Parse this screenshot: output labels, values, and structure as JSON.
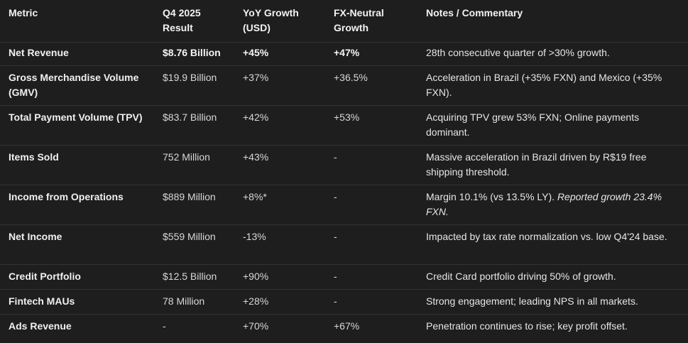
{
  "headers": {
    "metric": "Metric",
    "q4": "Q4 2025 Result",
    "yoy": "YoY Growth (USD)",
    "fxn": "FX-Neutral Growth",
    "notes": "Notes / Commentary"
  },
  "rows": [
    {
      "metric": "Net Revenue",
      "q4": "$8.76 Billion",
      "yoy": "+45%",
      "fxn": "+47%",
      "notes": "28th consecutive quarter of >30% growth.",
      "notes_italic": ""
    },
    {
      "metric": "Gross Merchandise Volume (GMV)",
      "q4": "$19.9 Billion",
      "yoy": "+37%",
      "fxn": "+36.5%",
      "notes": "Acceleration in Brazil (+35% FXN) and Mexico (+35% FXN).",
      "notes_italic": ""
    },
    {
      "metric": "Total Payment Volume (TPV)",
      "q4": "$83.7 Billion",
      "yoy": "+42%",
      "fxn": "+53%",
      "notes": "Acquiring TPV grew 53% FXN; Online payments dominant.",
      "notes_italic": ""
    },
    {
      "metric": "Items Sold",
      "q4": "752 Million",
      "yoy": "+43%",
      "fxn": "-",
      "notes": "Massive acceleration in Brazil driven by R$19 free shipping threshold.",
      "notes_italic": ""
    },
    {
      "metric": "Income from Operations",
      "q4": "$889 Million",
      "yoy": "+8%*",
      "fxn": "-",
      "notes": "Margin 10.1% (vs 13.5% LY). ",
      "notes_italic": "Reported growth 23.4% FXN."
    },
    {
      "metric": "Net Income",
      "q4": "$559 Million",
      "yoy": "-13%",
      "fxn": "-",
      "notes": "Impacted by tax rate normalization vs. low Q4'24 base.",
      "notes_italic": ""
    },
    {
      "metric": "Credit Portfolio",
      "q4": "$12.5 Billion",
      "yoy": "+90%",
      "fxn": "-",
      "notes": "Credit Card portfolio driving 50% of growth.",
      "notes_italic": ""
    },
    {
      "metric": "Fintech MAUs",
      "q4": "78 Million",
      "yoy": "+28%",
      "fxn": "-",
      "notes": "Strong engagement; leading NPS in all markets.",
      "notes_italic": ""
    },
    {
      "metric": "Ads Revenue",
      "q4": "-",
      "yoy": "+70%",
      "fxn": "+67%",
      "notes": "Penetration continues to rise; key profit offset.",
      "notes_italic": ""
    }
  ]
}
